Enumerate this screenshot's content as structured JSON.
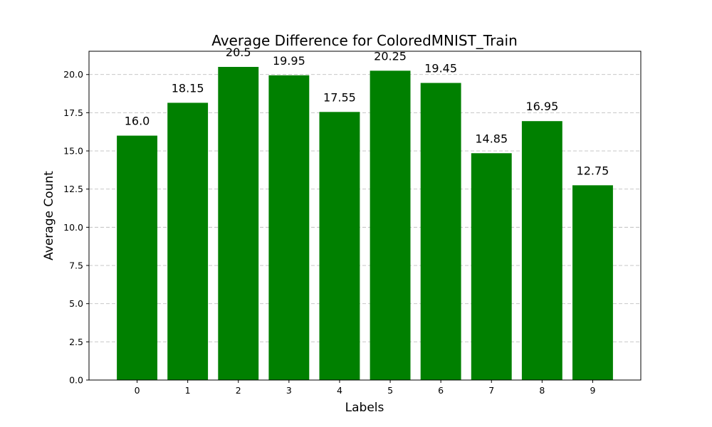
{
  "chart_data": {
    "type": "bar",
    "title": "Average Difference for ColoredMNIST_Train",
    "xlabel": "Labels",
    "ylabel": "Average Count",
    "categories": [
      "0",
      "1",
      "2",
      "3",
      "4",
      "5",
      "6",
      "7",
      "8",
      "9"
    ],
    "values": [
      16.0,
      18.15,
      20.5,
      19.95,
      17.55,
      20.25,
      19.45,
      14.85,
      16.95,
      12.75
    ],
    "value_labels": [
      "16.0",
      "18.15",
      "20.5",
      "19.95",
      "17.55",
      "20.25",
      "19.45",
      "14.85",
      "16.95",
      "12.75"
    ],
    "yticks": [
      "0.0",
      "2.5",
      "5.0",
      "7.5",
      "10.0",
      "12.5",
      "15.0",
      "17.5",
      "20.0"
    ],
    "ylim": [
      0,
      21.525
    ],
    "grid": "y-dashed",
    "bar_color": "#008000"
  }
}
